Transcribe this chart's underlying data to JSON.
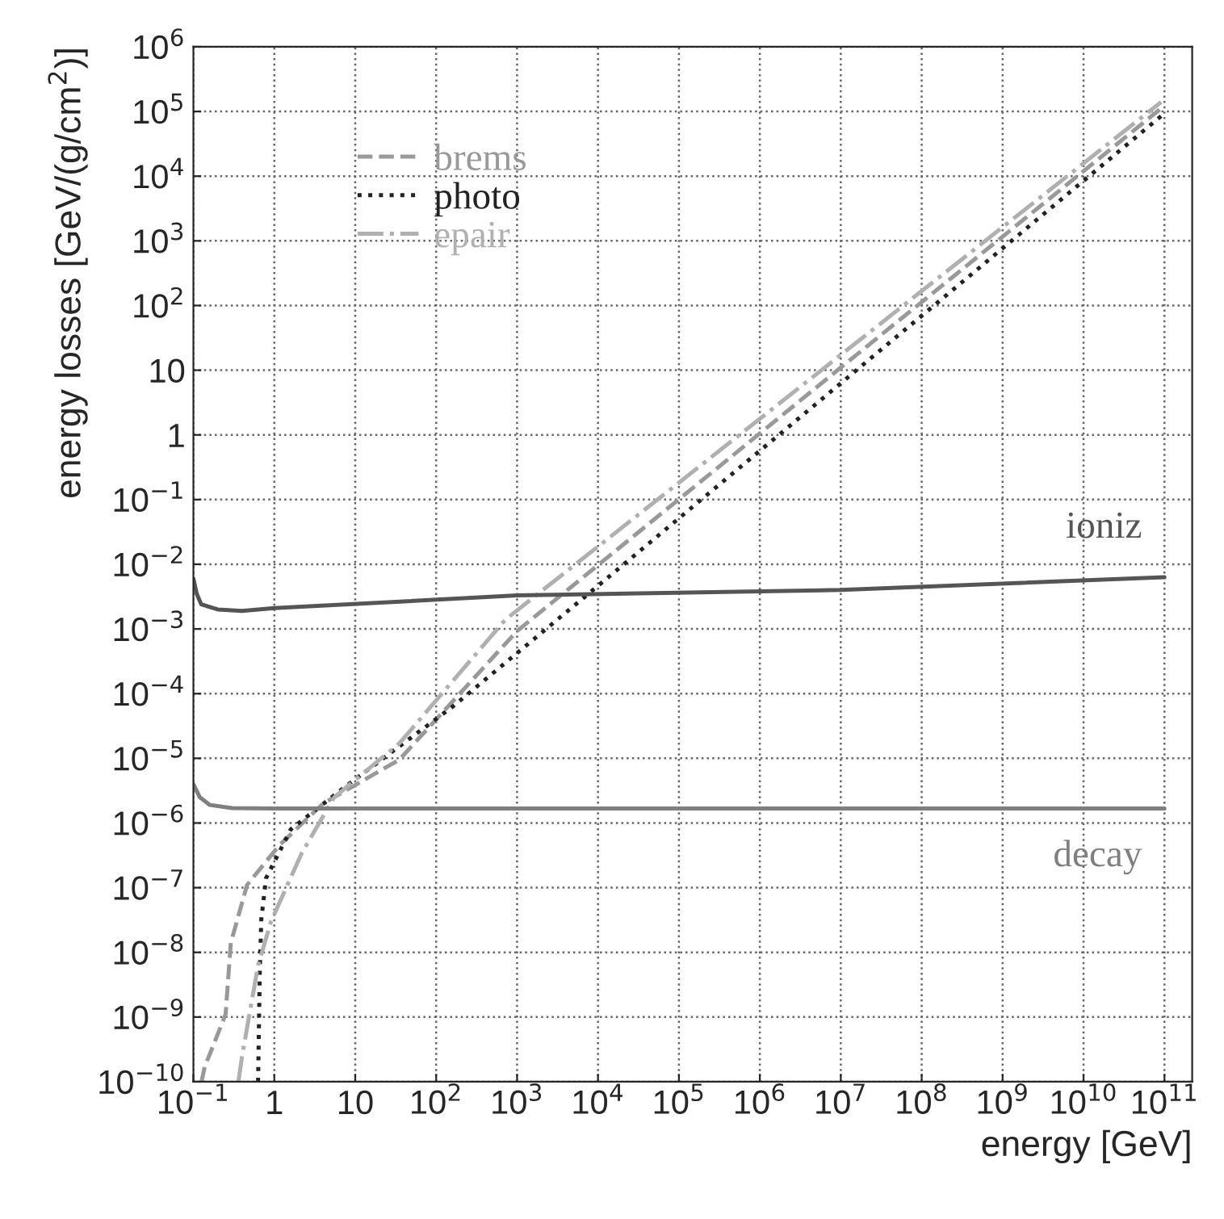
{
  "chart_data": {
    "type": "line",
    "xlabel": "energy [GeV]",
    "ylabel": "energy losses [GeV/(g/cm$^{2}$)]",
    "log": "xy",
    "grid": true,
    "legend": "top left",
    "xlim": [
      0.1,
      220000000000.0
    ],
    "ylim": [
      1e-10,
      1000000.0
    ],
    "xticks": [
      {
        "value": 0.1,
        "label": "10$^{−1}$"
      },
      1,
      10,
      {
        "value": 100,
        "label": "10$^{2}$"
      },
      {
        "value": 1000,
        "label": "10$^{3}$"
      },
      {
        "value": 10000.0,
        "label": "10$^{4}$"
      },
      {
        "value": 100000.0,
        "label": "10$^{5}$"
      },
      {
        "value": 1000000.0,
        "label": "10$^{6}$"
      },
      {
        "value": 10000000.0,
        "label": "10$^{7}$"
      },
      {
        "value": 100000000.0,
        "label": "10$^{8}$"
      },
      {
        "value": 1000000000.0,
        "label": "10$^{9}$"
      },
      {
        "value": 10000000000.0,
        "label": "10$^{10}$"
      },
      {
        "value": 100000000000.0,
        "label": "10$^{11}$"
      }
    ],
    "yticks": [
      {
        "value": 1e-10,
        "label": "10$^{−10}$"
      },
      {
        "value": 1e-09,
        "label": "10$^{−9}$"
      },
      {
        "value": 1e-08,
        "label": "10$^{−8}$"
      },
      {
        "value": 1e-07,
        "label": "10$^{−7}$"
      },
      {
        "value": 1e-06,
        "label": "10$^{−6}$"
      },
      {
        "value": 1e-05,
        "label": "10$^{−5}$"
      },
      {
        "value": 0.0001,
        "label": "10$^{−4}$"
      },
      {
        "value": 0.001,
        "label": "10$^{−3}$"
      },
      {
        "value": 0.01,
        "label": "10$^{−2}$"
      },
      {
        "value": 0.1,
        "label": "10$^{−1}$"
      },
      1,
      10,
      {
        "value": 100,
        "label": "10$^{2}$"
      },
      {
        "value": 1000,
        "label": "10$^{3}$"
      },
      {
        "value": 10000.0,
        "label": "10$^{4}$"
      },
      {
        "value": 100000.0,
        "label": "10$^{5}$"
      },
      {
        "value": 1000000.0,
        "label": "10$^{6}$"
      }
    ],
    "series": [
      {
        "name": "brems",
        "color": "#999999",
        "line_style": "dashed",
        "x": [
          0.126,
          0.138,
          0.25,
          0.29,
          0.46,
          1.15,
          4,
          35,
          1000,
          10000000.0,
          87000000000.0
        ],
        "values": [
          1e-10,
          1.7e-10,
          1.1e-09,
          1.4e-08,
          1.1e-07,
          4.5e-07,
          2e-06,
          9.5e-06,
          0.00093,
          11,
          107000.0
        ]
      },
      {
        "name": "photo",
        "color": "#222222",
        "line_style": "dotted",
        "x": [
          0.63,
          0.66,
          0.69,
          0.79,
          1.6,
          7.2,
          160,
          7200,
          91000000000.0
        ],
        "values": [
          1e-10,
          4.5e-09,
          3.2e-08,
          1.4e-07,
          8e-07,
          3.5e-06,
          6.3e-05,
          0.0033,
          85000.0
        ]
      },
      {
        "name": "epair",
        "color": "#b0b0b0",
        "line_style": "dashdot",
        "x": [
          0.36,
          0.4,
          0.63,
          0.91,
          2.2,
          5.5,
          35,
          720,
          91000000000.0
        ],
        "values": [
          1e-10,
          2.5e-10,
          6.3e-09,
          3e-08,
          3.5e-07,
          2.5e-06,
          1.7e-05,
          0.0014,
          140000.0
        ]
      },
      {
        "name": "ioniz",
        "color": "#555555",
        "line_style": "solid",
        "x": [
          0.1,
          0.11,
          0.125,
          0.2,
          0.4,
          1,
          1000,
          10000000.0,
          100000000000.0
        ],
        "values": [
          0.006,
          0.0035,
          0.0024,
          0.002,
          0.0019,
          0.0021,
          0.0033,
          0.004,
          0.0063
        ]
      },
      {
        "name": "decay",
        "color": "#7f7f7f",
        "line_style": "solid",
        "x": [
          0.1,
          0.12,
          0.16,
          0.3,
          1,
          100000000000.0
        ],
        "values": [
          4e-06,
          2.5e-06,
          1.9e-06,
          1.7e-06,
          1.68e-06,
          1.68e-06
        ]
      }
    ]
  }
}
